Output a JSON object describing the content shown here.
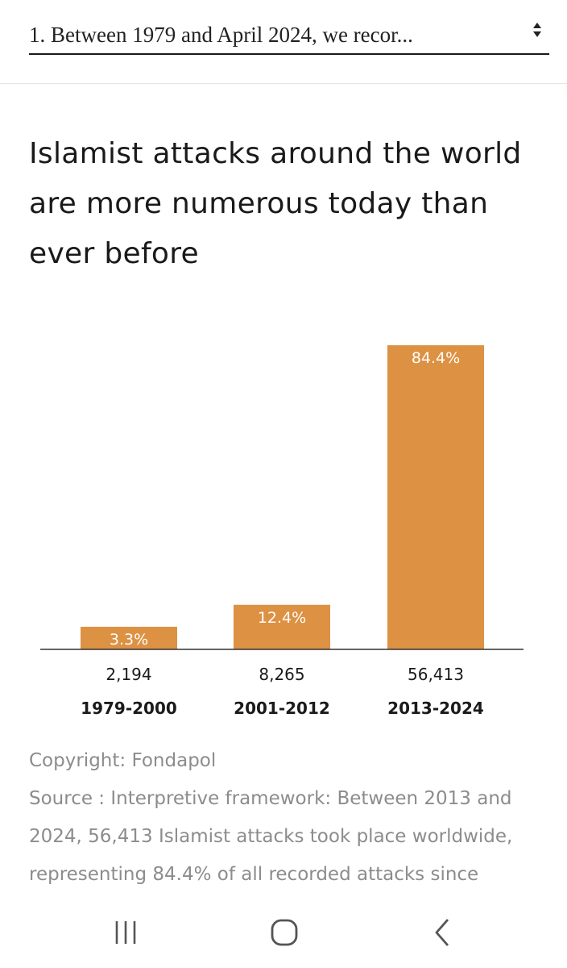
{
  "selector": {
    "label": "1. Between 1979 and April 2024, we recor...",
    "icon": "sort-arrows-icon"
  },
  "title": "Islamist attacks around the world are more numerous today than ever before",
  "chart_data": {
    "type": "bar",
    "title": "Islamist attacks around the world are more numerous today than ever before",
    "categories": [
      "1979-2000",
      "2001-2012",
      "2013-2024"
    ],
    "values": [
      2194,
      8265,
      56413
    ],
    "value_labels": [
      "2,194",
      "8,265",
      "56,413"
    ],
    "percent_labels": [
      "3.3%",
      "12.4%",
      "84.4%"
    ],
    "percent_values": [
      3.3,
      12.4,
      84.4
    ],
    "bar_color": "#dd9143",
    "xlabel": "",
    "ylabel": "",
    "grid": false
  },
  "footer": {
    "copyright": "Copyright: Fondapol",
    "source_line1": "Source : Interpretive framework: Between 2013 and",
    "source_line2": "2024, 56,413 Islamist attacks took place worldwide,",
    "source_line3": "representing 84.4% of all recorded attacks since"
  },
  "navbar": {
    "icons": [
      "recent-apps-icon",
      "home-icon",
      "back-icon"
    ]
  }
}
